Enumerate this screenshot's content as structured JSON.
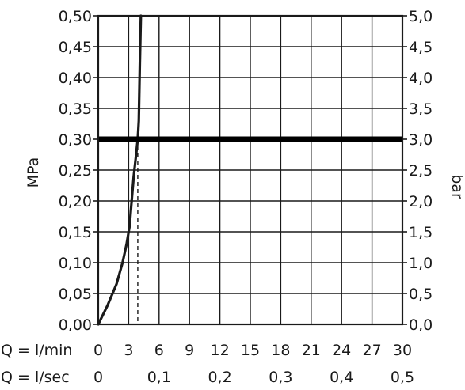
{
  "chart_data": {
    "type": "line",
    "title": "",
    "ylabel_left": "MPa",
    "ylabel_right": "bar",
    "y_left_range": [
      0,
      0.5
    ],
    "y_left_ticks": [
      "0,00",
      "0,05",
      "0,10",
      "0,15",
      "0,20",
      "0,25",
      "0,30",
      "0,35",
      "0,40",
      "0,45",
      "0,50"
    ],
    "y_right_ticks": [
      "0,0",
      "0,5",
      "1,0",
      "1,5",
      "2,0",
      "2,5",
      "3,0",
      "3,5",
      "4,0",
      "4,5",
      "5,0"
    ],
    "x_range": [
      0,
      30
    ],
    "x_row1_label": "Q = l/min",
    "x_row1_ticks": [
      "0",
      "3",
      "6",
      "9",
      "12",
      "15",
      "18",
      "21",
      "24",
      "27",
      "30"
    ],
    "x_row2_label": "Q = l/sec",
    "x_row2_ticks": [
      "0",
      "0,1",
      "0,2",
      "0,3",
      "0,4",
      "0,5"
    ],
    "grid": true,
    "series": [
      {
        "color": "#1a1a1a",
        "x": [
          0,
          0.9,
          1.8,
          2.4,
          2.8,
          3.1,
          3.3,
          3.5,
          3.7,
          3.9,
          4.0,
          4.1,
          4.2
        ],
        "y": [
          0,
          0.03,
          0.065,
          0.1,
          0.13,
          0.16,
          0.2,
          0.24,
          0.27,
          0.3,
          0.33,
          0.42,
          0.5
        ]
      }
    ],
    "reference_line": {
      "y": 0.3,
      "color": "#000000"
    },
    "reference_drop": {
      "x": 3.9,
      "from_y": 0.3,
      "to_y": 0,
      "style": "dashed"
    }
  }
}
